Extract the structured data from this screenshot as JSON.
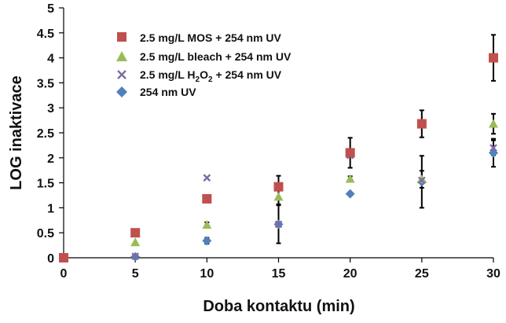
{
  "chart_data": {
    "type": "scatter",
    "xlabel": "Doba kontaktu (min)",
    "ylabel": "LOG inaktivace",
    "xlim": [
      0,
      30
    ],
    "ylim": [
      0,
      5
    ],
    "xticks": [
      0,
      5,
      10,
      15,
      20,
      25,
      30
    ],
    "yticks": [
      0,
      0.5,
      1,
      1.5,
      2,
      2.5,
      3,
      3.5,
      4,
      4.5,
      5
    ],
    "ytick_labels": [
      "0",
      "0.5",
      "1",
      "1.5",
      "2",
      "2.5",
      "3",
      "3.5",
      "4",
      "4.5",
      "5"
    ],
    "grid": false,
    "legend_position": "top-left",
    "series": [
      {
        "name": "2.5 mg/L MOS + 254 nm UV",
        "marker": "square",
        "color": "#c0504d",
        "points": [
          {
            "x": 0,
            "y": 0,
            "err": 0
          },
          {
            "x": 5,
            "y": 0.5,
            "err": 0
          },
          {
            "x": 10,
            "y": 1.18,
            "err": 0
          },
          {
            "x": 15,
            "y": 1.42,
            "err": 0.22
          },
          {
            "x": 20,
            "y": 2.1,
            "err": 0.3
          },
          {
            "x": 25,
            "y": 2.68,
            "err": 0.27
          },
          {
            "x": 30,
            "y": 4.0,
            "err": 0.46
          }
        ]
      },
      {
        "name": "2.5 mg/L bleach + 254 nm UV",
        "marker": "triangle",
        "color": "#9bbb59",
        "points": [
          {
            "x": 0,
            "y": 0,
            "err": 0
          },
          {
            "x": 5,
            "y": 0.31,
            "err": 0
          },
          {
            "x": 10,
            "y": 0.66,
            "err": 0.05
          },
          {
            "x": 15,
            "y": 1.22,
            "err": 0.15
          },
          {
            "x": 20,
            "y": 1.58,
            "err": 0.05
          },
          {
            "x": 25,
            "y": 1.57,
            "err": 0.17
          },
          {
            "x": 30,
            "y": 2.68,
            "err": 0.2
          }
        ]
      },
      {
        "name": "2.5 mg/L H2O2 + 254 nm UV",
        "name_prefix": "2.5 mg/L H",
        "name_sub1": "2",
        "name_mid": "O",
        "name_sub2": "2",
        "name_suffix": " + 254 nm UV",
        "marker": "x",
        "color": "#7f6aa1",
        "points": [
          {
            "x": 0,
            "y": 0,
            "err": 0
          },
          {
            "x": 5,
            "y": 0.03,
            "err": 0
          },
          {
            "x": 10,
            "y": 1.6,
            "err": 0
          },
          {
            "x": 15,
            "y": 0.67,
            "err": 0
          },
          {
            "x": 20,
            "y": 2.05,
            "err": 0
          },
          {
            "x": 25,
            "y": 1.55,
            "err": 0
          },
          {
            "x": 30,
            "y": 2.2,
            "err": 0.15
          }
        ]
      },
      {
        "name": "254 nm UV",
        "marker": "diamond",
        "color": "#4f81bd",
        "points": [
          {
            "x": 0,
            "y": 0,
            "err": 0
          },
          {
            "x": 5,
            "y": 0.02,
            "err": 0
          },
          {
            "x": 10,
            "y": 0.34,
            "err": 0.06
          },
          {
            "x": 15,
            "y": 0.67,
            "err": 0.38
          },
          {
            "x": 20,
            "y": 1.28,
            "err": 0
          },
          {
            "x": 25,
            "y": 1.52,
            "err": 0.52
          },
          {
            "x": 30,
            "y": 2.1,
            "err": 0.28
          }
        ]
      }
    ]
  }
}
